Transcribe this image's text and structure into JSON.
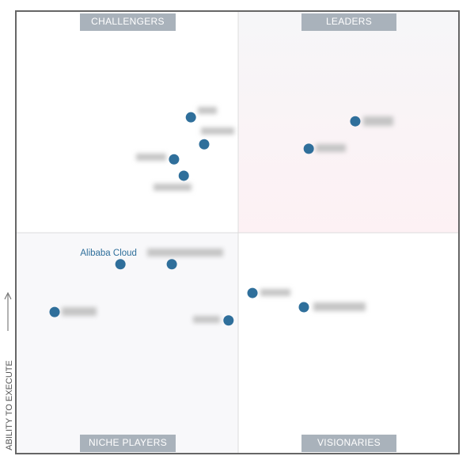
{
  "chart_data": {
    "type": "scatter",
    "quadrants": [
      "CHALLENGERS",
      "LEADERS",
      "NICHE PLAYERS",
      "VISIONARIES"
    ],
    "y_label": "ABILITY TO EXECUTE",
    "x": [
      39.5,
      42.5,
      35.7,
      37.9,
      76.6,
      66.1,
      23.6,
      35.2,
      8.75,
      48.0,
      53.4,
      65.0
    ],
    "values": [
      76.0,
      69.9,
      66.5,
      62.8,
      75.1,
      68.9,
      42.8,
      42.8,
      32.0,
      30.1,
      36.3,
      33.1
    ],
    "point_labels": [
      null,
      null,
      null,
      null,
      null,
      null,
      "Alibaba Cloud",
      null,
      null,
      null,
      null,
      null
    ],
    "color": "#2f6f9b",
    "xlim": [
      0,
      100
    ],
    "ylim": [
      0,
      100
    ]
  }
}
